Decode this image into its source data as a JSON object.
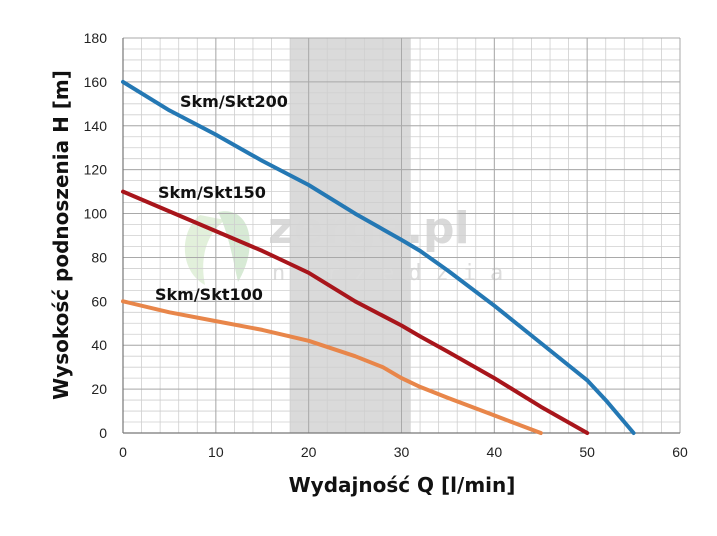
{
  "chart_data": {
    "type": "line",
    "xlabel": "Wydajność Q [l/min]",
    "ylabel": "Wysokość podnoszenia H [m]",
    "xlim": [
      0,
      60
    ],
    "ylim": [
      0,
      180
    ],
    "xticks": [
      0,
      10,
      20,
      30,
      40,
      50,
      60
    ],
    "yticks": [
      0,
      20,
      40,
      60,
      80,
      100,
      120,
      140,
      160,
      180
    ],
    "grid": true,
    "highlight_band": {
      "x_from": 18,
      "x_to": 31,
      "color": "#d6d6d6"
    },
    "series": [
      {
        "name": "Skm/Skt200",
        "color": "#2478b4",
        "points": [
          [
            0,
            160
          ],
          [
            5,
            147
          ],
          [
            10,
            136
          ],
          [
            15,
            124
          ],
          [
            20,
            113
          ],
          [
            25,
            100
          ],
          [
            30,
            88
          ],
          [
            32,
            83
          ],
          [
            35,
            74
          ],
          [
            40,
            58
          ],
          [
            45,
            41
          ],
          [
            50,
            24
          ],
          [
            52,
            15
          ],
          [
            55,
            0
          ]
        ]
      },
      {
        "name": "Skm/Skt150",
        "color": "#a8151b",
        "points": [
          [
            0,
            110
          ],
          [
            5,
            101
          ],
          [
            10,
            92
          ],
          [
            15,
            83
          ],
          [
            18,
            77
          ],
          [
            20,
            73
          ],
          [
            25,
            60
          ],
          [
            30,
            49
          ],
          [
            32,
            44
          ],
          [
            35,
            37
          ],
          [
            40,
            25
          ],
          [
            45,
            12
          ],
          [
            50,
            0
          ]
        ]
      },
      {
        "name": "Skm/Skt100",
        "color": "#e8864a",
        "points": [
          [
            0,
            60
          ],
          [
            5,
            55
          ],
          [
            10,
            51
          ],
          [
            15,
            47
          ],
          [
            20,
            42
          ],
          [
            25,
            35
          ],
          [
            28,
            30
          ],
          [
            30,
            25
          ],
          [
            32,
            21
          ],
          [
            35,
            16
          ],
          [
            40,
            8
          ],
          [
            45,
            0
          ]
        ]
      }
    ]
  },
  "watermark": {
    "main": "zerga.pl",
    "sub": "narzedzia"
  }
}
